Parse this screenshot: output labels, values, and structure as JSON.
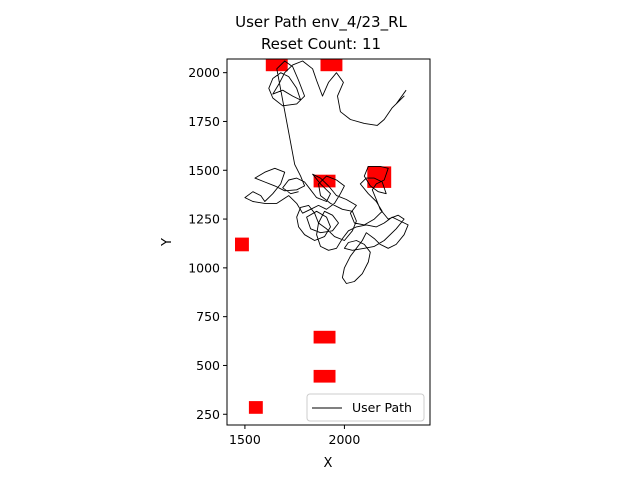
{
  "chart_data": {
    "type": "line",
    "title_line1": "User Path env_4/23_RL",
    "title_line2": "Reset Count: 11",
    "xlabel": "X",
    "ylabel": "Y",
    "xlim": [
      1410,
      2430
    ],
    "ylim": [
      195,
      2070
    ],
    "xticks": [
      1500,
      2000
    ],
    "yticks": [
      250,
      500,
      750,
      1000,
      1250,
      1500,
      1750,
      2000
    ],
    "grid": false,
    "legend": {
      "position": "bottom-right",
      "label": "User Path"
    },
    "colors": {
      "path": "#000000",
      "obstacle": "#ff0000",
      "frame": "#000000"
    },
    "obstacles": [
      {
        "x": 1660,
        "y": 2045,
        "w": 110,
        "h": 75
      },
      {
        "x": 1935,
        "y": 2045,
        "w": 110,
        "h": 75
      },
      {
        "x": 2175,
        "y": 1465,
        "w": 120,
        "h": 110
      },
      {
        "x": 1900,
        "y": 1445,
        "w": 110,
        "h": 65
      },
      {
        "x": 1485,
        "y": 1120,
        "w": 70,
        "h": 70
      },
      {
        "x": 1900,
        "y": 645,
        "w": 110,
        "h": 65
      },
      {
        "x": 1900,
        "y": 445,
        "w": 110,
        "h": 65
      },
      {
        "x": 1555,
        "y": 285,
        "w": 70,
        "h": 65
      }
    ],
    "series": [
      {
        "name": "User Path",
        "points": [
          [
            2310,
            1910
          ],
          [
            2260,
            1840
          ],
          [
            2300,
            1880
          ],
          [
            2240,
            1820
          ],
          [
            2200,
            1760
          ],
          [
            2165,
            1730
          ],
          [
            2100,
            1740
          ],
          [
            2030,
            1760
          ],
          [
            1980,
            1800
          ],
          [
            1965,
            1880
          ],
          [
            1995,
            1950
          ],
          [
            1960,
            2000
          ],
          [
            1920,
            1950
          ],
          [
            1890,
            1880
          ],
          [
            1860,
            1960
          ],
          [
            1840,
            2020
          ],
          [
            1790,
            2060
          ],
          [
            1740,
            2040
          ],
          [
            1700,
            2000
          ],
          [
            1670,
            1940
          ],
          [
            1640,
            1890
          ],
          [
            1690,
            1910
          ],
          [
            1740,
            1880
          ],
          [
            1780,
            1860
          ],
          [
            1760,
            1920
          ],
          [
            1720,
            1980
          ],
          [
            1680,
            2000
          ],
          [
            1640,
            1970
          ],
          [
            1620,
            1920
          ],
          [
            1640,
            1870
          ],
          [
            1690,
            1830
          ],
          [
            1760,
            1840
          ],
          [
            1800,
            1880
          ],
          [
            1770,
            1960
          ],
          [
            1740,
            2030
          ],
          [
            1700,
            2060
          ],
          [
            1660,
            2020
          ],
          [
            1750,
            1530
          ],
          [
            1780,
            1470
          ],
          [
            1800,
            1420
          ],
          [
            1760,
            1400
          ],
          [
            1700,
            1395
          ],
          [
            1650,
            1420
          ],
          [
            1600,
            1440
          ],
          [
            1550,
            1460
          ],
          [
            1600,
            1490
          ],
          [
            1650,
            1510
          ],
          [
            1700,
            1490
          ],
          [
            1680,
            1430
          ],
          [
            1640,
            1380
          ],
          [
            1600,
            1340
          ],
          [
            1580,
            1370
          ],
          [
            1540,
            1390
          ],
          [
            1500,
            1360
          ],
          [
            1540,
            1340
          ],
          [
            1600,
            1330
          ],
          [
            1660,
            1330
          ],
          [
            1720,
            1370
          ],
          [
            1760,
            1330
          ],
          [
            1790,
            1280
          ],
          [
            1830,
            1300
          ],
          [
            1870,
            1320
          ],
          [
            1910,
            1300
          ],
          [
            1950,
            1330
          ],
          [
            1980,
            1380
          ],
          [
            2000,
            1420
          ],
          [
            1960,
            1450
          ],
          [
            1910,
            1470
          ],
          [
            1870,
            1430
          ],
          [
            1880,
            1370
          ],
          [
            1930,
            1330
          ],
          [
            1990,
            1300
          ],
          [
            2040,
            1290
          ],
          [
            2060,
            1240
          ],
          [
            2040,
            1190
          ],
          [
            2000,
            1140
          ],
          [
            1950,
            1160
          ],
          [
            1910,
            1200
          ],
          [
            1870,
            1230
          ],
          [
            1850,
            1280
          ],
          [
            1820,
            1320
          ],
          [
            1780,
            1310
          ],
          [
            1760,
            1260
          ],
          [
            1770,
            1210
          ],
          [
            1800,
            1170
          ],
          [
            1850,
            1140
          ],
          [
            1900,
            1160
          ],
          [
            1930,
            1210
          ],
          [
            1910,
            1260
          ],
          [
            1860,
            1290
          ],
          [
            1810,
            1260
          ],
          [
            1830,
            1200
          ],
          [
            1880,
            1180
          ],
          [
            1940,
            1190
          ],
          [
            1970,
            1230
          ],
          [
            1940,
            1270
          ],
          [
            1900,
            1290
          ],
          [
            1870,
            1230
          ],
          [
            1860,
            1170
          ],
          [
            1880,
            1110
          ],
          [
            1920,
            1090
          ],
          [
            1960,
            1100
          ],
          [
            1990,
            1150
          ],
          [
            2020,
            1190
          ],
          [
            2060,
            1210
          ],
          [
            2110,
            1220
          ],
          [
            2160,
            1210
          ],
          [
            2200,
            1230
          ],
          [
            2240,
            1260
          ],
          [
            2280,
            1240
          ],
          [
            2320,
            1220
          ],
          [
            2300,
            1170
          ],
          [
            2260,
            1120
          ],
          [
            2220,
            1100
          ],
          [
            2180,
            1120
          ],
          [
            2150,
            1150
          ],
          [
            2110,
            1180
          ],
          [
            2090,
            1140
          ],
          [
            2060,
            1100
          ],
          [
            2030,
            1060
          ],
          [
            2000,
            1000
          ],
          [
            1990,
            950
          ],
          [
            2010,
            920
          ],
          [
            2050,
            930
          ],
          [
            2090,
            970
          ],
          [
            2120,
            1030
          ],
          [
            2130,
            1080
          ],
          [
            2100,
            1120
          ],
          [
            2060,
            1140
          ],
          [
            2020,
            1130
          ],
          [
            2000,
            1100
          ],
          [
            2040,
            1090
          ],
          [
            2100,
            1100
          ],
          [
            2150,
            1110
          ],
          [
            2200,
            1140
          ],
          [
            2260,
            1200
          ],
          [
            2300,
            1250
          ],
          [
            2270,
            1270
          ],
          [
            2220,
            1250
          ],
          [
            2180,
            1300
          ],
          [
            2160,
            1350
          ],
          [
            2140,
            1400
          ],
          [
            2160,
            1430
          ],
          [
            2200,
            1450
          ],
          [
            2220,
            1510
          ],
          [
            2180,
            1520
          ],
          [
            2120,
            1520
          ],
          [
            2100,
            1470
          ],
          [
            2130,
            1420
          ],
          [
            2170,
            1390
          ],
          [
            2210,
            1380
          ],
          [
            2190,
            1440
          ],
          [
            2150,
            1460
          ],
          [
            2110,
            1460
          ],
          [
            2080,
            1430
          ],
          [
            2120,
            1380
          ],
          [
            2160,
            1340
          ],
          [
            2190,
            1290
          ],
          [
            2150,
            1250
          ],
          [
            2100,
            1220
          ],
          [
            2050,
            1230
          ],
          [
            2030,
            1280
          ],
          [
            2060,
            1320
          ],
          [
            2010,
            1350
          ],
          [
            1960,
            1370
          ],
          [
            1920,
            1420
          ],
          [
            1880,
            1460
          ],
          [
            1840,
            1480
          ],
          [
            1880,
            1430
          ],
          [
            1930,
            1380
          ],
          [
            1910,
            1340
          ],
          [
            1860,
            1360
          ],
          [
            1830,
            1400
          ],
          [
            1800,
            1440
          ],
          [
            1760,
            1460
          ],
          [
            1720,
            1450
          ],
          [
            1690,
            1410
          ],
          [
            1730,
            1380
          ],
          [
            1770,
            1390
          ]
        ]
      }
    ]
  }
}
